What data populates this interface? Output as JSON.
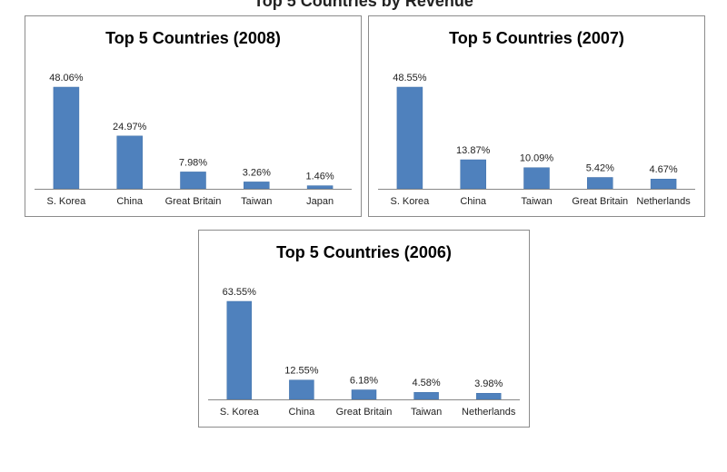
{
  "header": {
    "partial_title": "Top 5 Countries by Revenue"
  },
  "colors": {
    "bar": "#4f81bd",
    "axis": "#888888",
    "border": "#8c8c8c"
  },
  "chart_data": [
    {
      "id": "chart-2008",
      "type": "bar",
      "title": "Top 5 Countries (2008)",
      "categories": [
        "S. Korea",
        "China",
        "Great Britain",
        "Taiwan",
        "Japan"
      ],
      "values": [
        48.06,
        24.97,
        7.98,
        3.26,
        1.46
      ],
      "data_labels": [
        "48.06%",
        "24.97%",
        "7.98%",
        "3.26%",
        "1.46%"
      ],
      "ylim": [
        0,
        50
      ],
      "grid": false,
      "legend": "none"
    },
    {
      "id": "chart-2007",
      "type": "bar",
      "title": "Top 5 Countries (2007)",
      "categories": [
        "S. Korea",
        "China",
        "Taiwan",
        "Great Britain",
        "Netherlands"
      ],
      "values": [
        48.55,
        13.87,
        10.09,
        5.42,
        4.67
      ],
      "data_labels": [
        "48.55%",
        "13.87%",
        "10.09%",
        "5.42%",
        "4.67%"
      ],
      "ylim": [
        0,
        50
      ],
      "grid": false,
      "legend": "none"
    },
    {
      "id": "chart-2006",
      "type": "bar",
      "title": "Top 5 Countries (2006)",
      "categories": [
        "S. Korea",
        "China",
        "Great Britain",
        "Taiwan",
        "Netherlands"
      ],
      "values": [
        63.55,
        12.55,
        6.18,
        4.58,
        3.98
      ],
      "data_labels": [
        "63.55%",
        "12.55%",
        "6.18%",
        "4.58%",
        "3.98%"
      ],
      "ylim": [
        0,
        65
      ],
      "grid": false,
      "legend": "none"
    }
  ]
}
